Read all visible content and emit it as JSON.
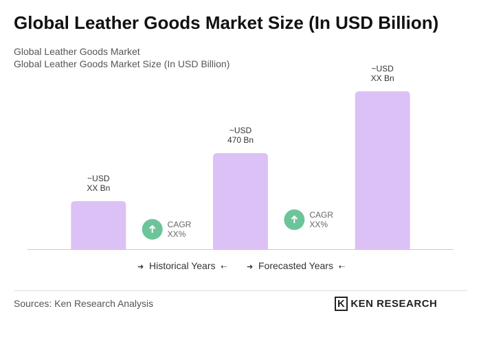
{
  "header": {
    "title": "Global Leather Goods Market Size (In USD Billion)",
    "subtitle": [
      "Global Leather Goods Market",
      "Global Leather Goods Market Size (In USD Billion)"
    ]
  },
  "chart_data": {
    "type": "bar",
    "color": "#dcc1f7",
    "categories": [
      null,
      null,
      null
    ],
    "values": [
      235,
      470,
      772
    ],
    "value_labels": [
      "~USD\nXX Bn",
      "~USD\n470 Bn",
      "~USD\nXX Bn"
    ],
    "annotations": [
      "CAGR\nXX%",
      "CAGR\nXX%"
    ],
    "annotation_color": "#6cc59a",
    "legend": [
      "Historical Years",
      "Forecasted Years"
    ]
  },
  "footer": {
    "source": "Sources: Ken Research Analysis",
    "logo": "KEN RESEARCH"
  }
}
